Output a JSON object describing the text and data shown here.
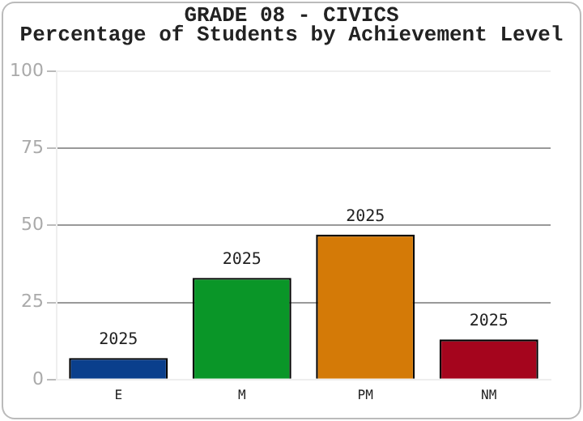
{
  "chart_data": {
    "type": "bar",
    "title": "GRADE 08 - CIVICS",
    "subtitle": "Percentage of Students by Achievement Level",
    "categories": [
      "E",
      "M",
      "PM",
      "NM"
    ],
    "values": [
      7,
      33,
      47,
      13
    ],
    "colors": [
      "#0a3f8c",
      "#0a9628",
      "#d47a07",
      "#a5051d"
    ],
    "ylim": [
      0,
      100
    ],
    "yticks": [
      0,
      25,
      50,
      75,
      100
    ],
    "grid": "y",
    "legend": false,
    "annotations": [
      {
        "text": "2025",
        "x": "E",
        "y": 7
      },
      {
        "text": "2025",
        "x": "M",
        "y": 33
      },
      {
        "text": "2025",
        "x": "PM",
        "y": 47
      },
      {
        "text": "2025",
        "x": "NM",
        "y": 13
      }
    ]
  }
}
